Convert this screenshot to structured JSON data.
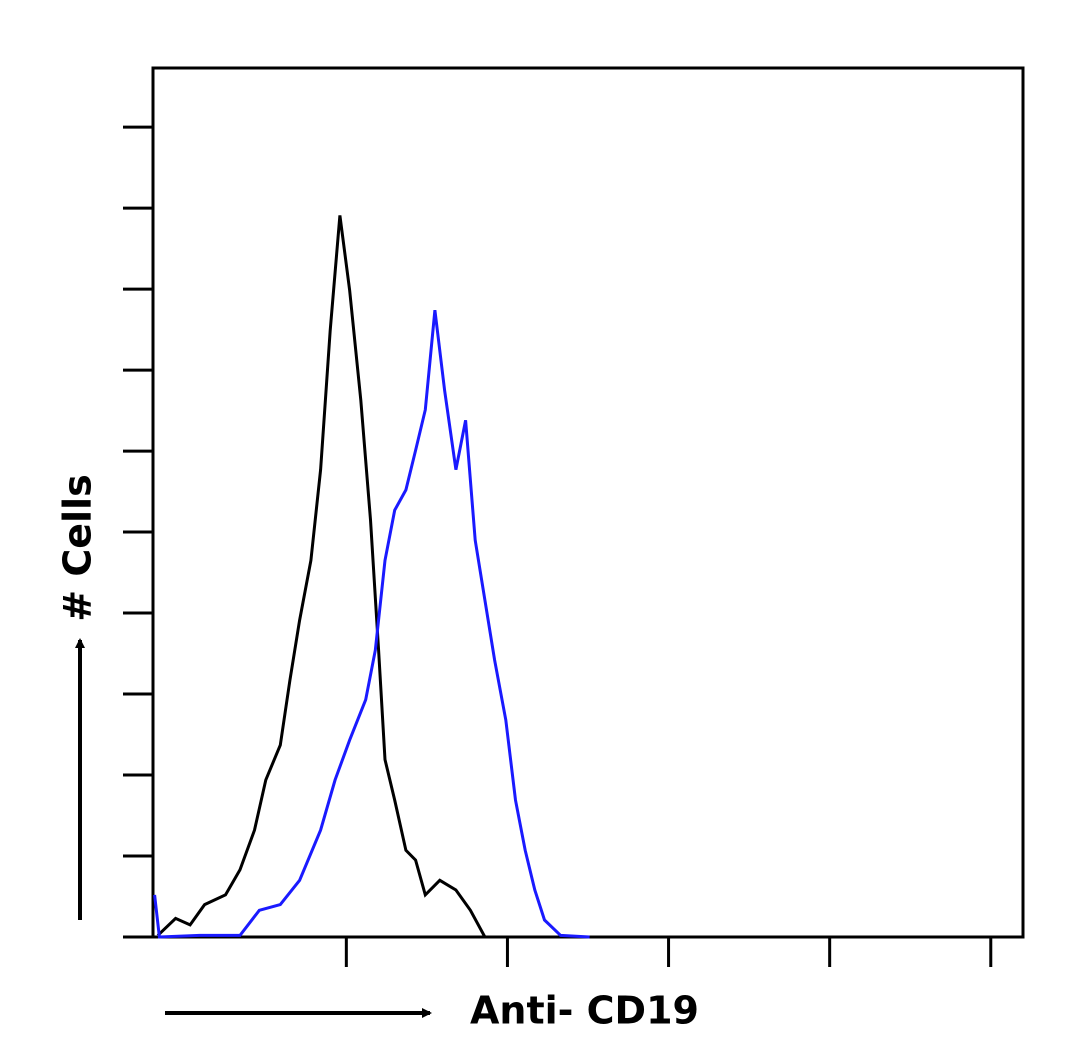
{
  "chart_data": {
    "type": "line",
    "x_label": "Anti- CD19",
    "y_label": "# Cells",
    "xlim": [
      -0.2,
      5.2
    ],
    "ylim": [
      0,
      10.73
    ],
    "xticks": [
      1,
      2,
      3,
      4,
      5
    ],
    "yticks": [
      0,
      1,
      2,
      3,
      4,
      5,
      6,
      7,
      8,
      9,
      10
    ],
    "series": [
      {
        "color": "#000000",
        "x": [
          -0.17,
          -0.06,
          0.03,
          0.12,
          0.25,
          0.34,
          0.43,
          0.5,
          0.59,
          0.65,
          0.71,
          0.78,
          0.84,
          0.9,
          0.96,
          1.02,
          1.09,
          1.15,
          1.2,
          1.24,
          1.3,
          1.37,
          1.43,
          1.49,
          1.58,
          1.68,
          1.77,
          1.86
        ],
        "values": [
          0.02,
          0.23,
          0.15,
          0.4,
          0.52,
          0.83,
          1.32,
          1.94,
          2.37,
          3.17,
          3.91,
          4.65,
          5.77,
          7.49,
          8.91,
          7.99,
          6.63,
          5.15,
          3.54,
          2.19,
          1.69,
          1.07,
          0.95,
          0.52,
          0.7,
          0.58,
          0.33,
          0
        ]
      },
      {
        "color": "#1a1aff",
        "x": [
          -0.19,
          -0.16,
          0.09,
          0.34,
          0.46,
          0.59,
          0.71,
          0.84,
          0.93,
          1.02,
          1.12,
          1.18,
          1.24,
          1.3,
          1.37,
          1.43,
          1.49,
          1.55,
          1.61,
          1.68,
          1.74,
          1.8,
          1.86,
          1.92,
          1.99,
          2.05,
          2.11,
          2.17,
          2.23,
          2.33,
          2.51
        ],
        "values": [
          0.52,
          0,
          0.02,
          0.02,
          0.33,
          0.4,
          0.7,
          1.32,
          1.94,
          2.43,
          2.93,
          3.54,
          4.65,
          5.27,
          5.52,
          6.01,
          6.51,
          7.74,
          6.75,
          5.77,
          6.38,
          4.9,
          4.16,
          3.42,
          2.68,
          1.69,
          1.07,
          0.58,
          0.21,
          0.02,
          0
        ]
      }
    ]
  }
}
